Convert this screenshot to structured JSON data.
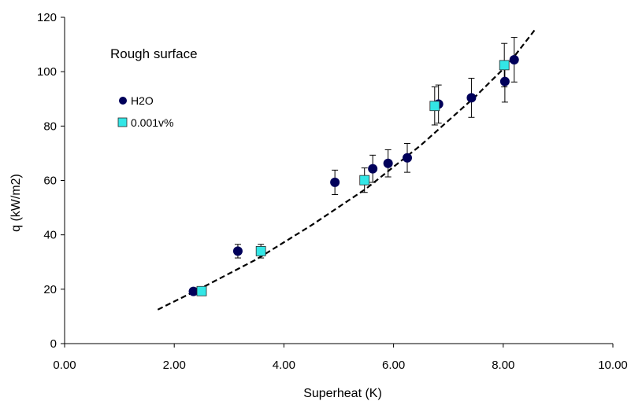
{
  "chart_data": {
    "type": "scatter",
    "xlabel": "Superheat (K)",
    "ylabel": "q (kW/m2)",
    "annotation": "Rough surface",
    "xlim": [
      0,
      10
    ],
    "ylim": [
      0,
      120
    ],
    "x_ticks": [
      "0.00",
      "2.00",
      "4.00",
      "6.00",
      "8.00",
      "10.00"
    ],
    "y_ticks": [
      "0",
      "20",
      "40",
      "60",
      "80",
      "100",
      "120"
    ],
    "grid": false,
    "legend_position": "upper-left",
    "series": [
      {
        "name": "H2O",
        "marker": "circle",
        "color": "#00005a",
        "points": [
          {
            "x": 2.35,
            "y": 19.2,
            "err": 1.2
          },
          {
            "x": 3.16,
            "y": 34.0,
            "err": 2.5
          },
          {
            "x": 4.93,
            "y": 59.3,
            "err": 4.5
          },
          {
            "x": 5.62,
            "y": 64.3,
            "err": 5.0
          },
          {
            "x": 5.9,
            "y": 66.3,
            "err": 5.0
          },
          {
            "x": 6.25,
            "y": 68.3,
            "err": 5.3
          },
          {
            "x": 6.82,
            "y": 88.1,
            "err": 7.0
          },
          {
            "x": 7.42,
            "y": 90.4,
            "err": 7.2
          },
          {
            "x": 8.03,
            "y": 96.4,
            "err": 7.6
          },
          {
            "x": 8.2,
            "y": 104.4,
            "err": 8.2
          }
        ]
      },
      {
        "name": "0.001v%",
        "marker": "square",
        "color": "#33e6e6",
        "points": [
          {
            "x": 2.5,
            "y": 19.3,
            "err": 1.2
          },
          {
            "x": 3.58,
            "y": 34.0,
            "err": 2.5
          },
          {
            "x": 5.47,
            "y": 60.1,
            "err": 4.5
          },
          {
            "x": 6.75,
            "y": 87.4,
            "err": 7.0
          },
          {
            "x": 8.02,
            "y": 102.4,
            "err": 8.0
          }
        ]
      }
    ],
    "trend_line": {
      "style": "dashed",
      "color": "#000000",
      "points": [
        {
          "x": 1.7,
          "y": 12.5
        },
        {
          "x": 2.5,
          "y": 20.5
        },
        {
          "x": 3.5,
          "y": 31.0
        },
        {
          "x": 4.5,
          "y": 43.5
        },
        {
          "x": 5.5,
          "y": 57.0
        },
        {
          "x": 6.5,
          "y": 73.0
        },
        {
          "x": 7.5,
          "y": 91.0
        },
        {
          "x": 8.1,
          "y": 103.0
        },
        {
          "x": 8.6,
          "y": 116.0
        }
      ]
    }
  }
}
